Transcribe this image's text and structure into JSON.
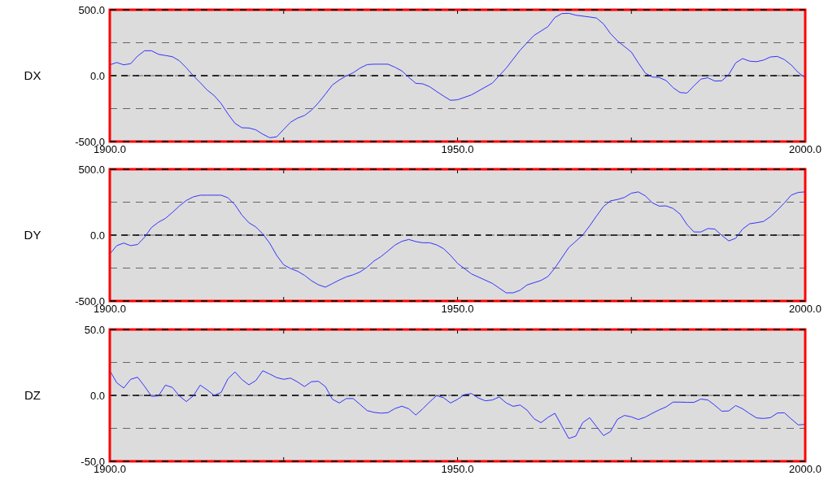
{
  "chart_data": [
    {
      "type": "line",
      "ylabel": "DX",
      "xlim": [
        1900,
        2000
      ],
      "ylim": [
        -500,
        500
      ],
      "xticks": [
        {
          "value": 1900,
          "label": "1900.0"
        },
        {
          "value": 1925,
          "label": null
        },
        {
          "value": 1950,
          "label": "1950.0"
        },
        {
          "value": 1975,
          "label": null
        },
        {
          "value": 2000,
          "label": "2000.0"
        }
      ],
      "yticks": [
        {
          "value": -500,
          "label": "-500.0"
        },
        {
          "value": -250,
          "label": null
        },
        {
          "value": 0,
          "label": "0.0"
        },
        {
          "value": 250,
          "label": null
        },
        {
          "value": 500,
          "label": "500.0"
        }
      ],
      "grid": "y",
      "ref_lines": [
        {
          "axis": "y",
          "value": 0,
          "color": "#000000",
          "line_style": "dashed"
        }
      ],
      "series": [
        {
          "color": "#3333ff",
          "x": [
            1900,
            1901,
            1902,
            1903,
            1904,
            1905,
            1906,
            1907,
            1908,
            1909,
            1910,
            1911,
            1912,
            1913,
            1914,
            1915,
            1916,
            1917,
            1918,
            1919,
            1920,
            1921,
            1922,
            1923,
            1924,
            1925,
            1926,
            1927,
            1928,
            1929,
            1930,
            1931,
            1932,
            1933,
            1934,
            1935,
            1936,
            1937,
            1938,
            1939,
            1940,
            1941,
            1942,
            1943,
            1944,
            1945,
            1946,
            1947,
            1948,
            1949,
            1950,
            1952,
            1955,
            1956,
            1957,
            1959,
            1960,
            1961,
            1963,
            1964,
            1965,
            1966,
            1967,
            1969,
            1970,
            1971,
            1972,
            1973,
            1975,
            1976,
            1977,
            1978,
            1979,
            1980,
            1981,
            1982,
            1983,
            1984,
            1985,
            1986,
            1987,
            1988,
            1989,
            1990,
            1991,
            1992,
            1993,
            1994,
            1995,
            1996,
            1997,
            1998,
            1999,
            2000
          ],
          "values": [
            82,
            100,
            82,
            91,
            149,
            189,
            189,
            162,
            153,
            144,
            113,
            60,
            0,
            -53,
            -109,
            -151,
            -211,
            -291,
            -362,
            -395,
            -397,
            -411,
            -444,
            -471,
            -464,
            -408,
            -353,
            -322,
            -302,
            -262,
            -206,
            -140,
            -71,
            -33,
            -2,
            22,
            58,
            84,
            87,
            87,
            87,
            64,
            36,
            -13,
            -58,
            -62,
            -84,
            -120,
            -155,
            -187,
            -183,
            -146,
            -57,
            0,
            57,
            193,
            250,
            305,
            372,
            441,
            471,
            473,
            459,
            445,
            437,
            392,
            319,
            264,
            179,
            97,
            20,
            -10,
            -14,
            -37,
            -91,
            -128,
            -132,
            -77,
            -26,
            -16,
            -41,
            -39,
            8,
            97,
            130,
            110,
            106,
            118,
            142,
            146,
            122,
            81,
            24,
            -16
          ]
        }
      ]
    },
    {
      "type": "line",
      "ylabel": "DY",
      "xlim": [
        1900,
        2000
      ],
      "ylim": [
        -500,
        500
      ],
      "xticks": [
        {
          "value": 1900,
          "label": "1900.0"
        },
        {
          "value": 1925,
          "label": null
        },
        {
          "value": 1950,
          "label": "1950.0"
        },
        {
          "value": 1975,
          "label": null
        },
        {
          "value": 2000,
          "label": "2000.0"
        }
      ],
      "yticks": [
        {
          "value": -500,
          "label": "-500.0"
        },
        {
          "value": -250,
          "label": null
        },
        {
          "value": 0,
          "label": "0.0"
        },
        {
          "value": 250,
          "label": null
        },
        {
          "value": 500,
          "label": "500.0"
        }
      ],
      "grid": "y",
      "ref_lines": [
        {
          "axis": "y",
          "value": 0,
          "color": "#000000",
          "line_style": "dashed"
        }
      ],
      "series": [
        {
          "color": "#3333ff",
          "x": [
            1900,
            1901,
            1902,
            1903,
            1904,
            1905,
            1906,
            1907,
            1908,
            1909,
            1910,
            1911,
            1912,
            1913,
            1914,
            1915,
            1916,
            1917,
            1918,
            1919,
            1920,
            1921,
            1922,
            1923,
            1924,
            1925,
            1926,
            1927,
            1928,
            1929,
            1930,
            1931,
            1932,
            1933,
            1934,
            1935,
            1936,
            1937,
            1938,
            1939,
            1940,
            1941,
            1942,
            1943,
            1944,
            1945,
            1946,
            1947,
            1948,
            1949,
            1950,
            1952,
            1955,
            1957,
            1958,
            1959,
            1960,
            1962,
            1963,
            1964,
            1966,
            1968,
            1969,
            1970,
            1971,
            1972,
            1973,
            1974,
            1975,
            1976,
            1977,
            1978,
            1979,
            1980,
            1981,
            1982,
            1983,
            1984,
            1985,
            1986,
            1987,
            1988,
            1989,
            1990,
            1991,
            1992,
            1993,
            1994,
            1995,
            1996,
            1997,
            1998,
            1999,
            2000
          ],
          "values": [
            -143,
            -80,
            -60,
            -80,
            -71,
            -16,
            58,
            98,
            127,
            172,
            221,
            263,
            290,
            303,
            303,
            303,
            303,
            283,
            230,
            152,
            94,
            62,
            9,
            -62,
            -154,
            -225,
            -254,
            -274,
            -305,
            -346,
            -377,
            -395,
            -368,
            -341,
            -317,
            -301,
            -279,
            -243,
            -196,
            -163,
            -120,
            -76,
            -47,
            -33,
            -49,
            -58,
            -58,
            -74,
            -103,
            -154,
            -214,
            -294,
            -366,
            -438,
            -438,
            -418,
            -378,
            -344,
            -314,
            -250,
            -94,
            0,
            70,
            146,
            218,
            260,
            270,
            286,
            318,
            328,
            298,
            246,
            220,
            222,
            202,
            160,
            80,
            24,
            24,
            50,
            46,
            -2,
            -44,
            -24,
            46,
            86,
            94,
            104,
            140,
            190,
            244,
            304,
            324,
            328
          ]
        }
      ]
    },
    {
      "type": "line",
      "ylabel": "DZ",
      "xlim": [
        1900,
        2000
      ],
      "ylim": [
        -50,
        50
      ],
      "xticks": [
        {
          "value": 1900,
          "label": "1900.0"
        },
        {
          "value": 1925,
          "label": null
        },
        {
          "value": 1950,
          "label": "1950.0"
        },
        {
          "value": 1975,
          "label": null
        },
        {
          "value": 2000,
          "label": "2000.0"
        }
      ],
      "yticks": [
        {
          "value": -50,
          "label": "-50.0"
        },
        {
          "value": -25,
          "label": null
        },
        {
          "value": 0,
          "label": "0.0"
        },
        {
          "value": 25,
          "label": null
        },
        {
          "value": 50,
          "label": "50.0"
        }
      ],
      "grid": "y",
      "ref_lines": [
        {
          "axis": "y",
          "value": 0,
          "color": "#000000",
          "line_style": "dashed"
        }
      ],
      "series": [
        {
          "color": "#3333ff",
          "x": [
            1900,
            1901,
            1902,
            1903,
            1904,
            1905,
            1906,
            1907,
            1908,
            1909,
            1910,
            1911,
            1912,
            1913,
            1914,
            1915,
            1916,
            1917,
            1918,
            1919,
            1920,
            1921,
            1922,
            1923,
            1924,
            1925,
            1926,
            1927,
            1928,
            1929,
            1930,
            1931,
            1932,
            1933,
            1934,
            1935,
            1936,
            1937,
            1938,
            1939,
            1940,
            1941,
            1942,
            1943,
            1944,
            1945,
            1946,
            1947,
            1948,
            1949,
            1950,
            1951,
            1952,
            1953,
            1954,
            1955,
            1956,
            1957,
            1958,
            1959,
            1960,
            1961,
            1962,
            1963,
            1964,
            1965,
            1966,
            1967,
            1968,
            1969,
            1970,
            1971,
            1972,
            1973,
            1974,
            1975,
            1976,
            1977,
            1978,
            1979,
            1980,
            1981,
            1982,
            1983,
            1984,
            1985,
            1986,
            1987,
            1988,
            1989,
            1990,
            1991,
            1992,
            1993,
            1994,
            1995,
            1996,
            1997,
            1998,
            1999,
            2000
          ],
          "values": [
            18.7,
            9.6,
            5.6,
            12.2,
            13.8,
            6.9,
            -0.7,
            -0.4,
            7.8,
            6.0,
            -0.4,
            -4.7,
            -0.4,
            7.8,
            4.2,
            0,
            2.2,
            12.7,
            17.8,
            12.0,
            8.0,
            11.3,
            18.7,
            16.2,
            13.5,
            12.2,
            13.1,
            10.2,
            6.7,
            10.4,
            10.7,
            6.7,
            -2.9,
            -5.8,
            -2.4,
            -2.4,
            -6.9,
            -11.5,
            -12.9,
            -13.5,
            -13.1,
            -10.0,
            -8.2,
            -10.2,
            -14.9,
            -10.2,
            -4.9,
            -0.2,
            -1.8,
            -5.8,
            -3.0,
            0.6,
            1.4,
            -2.0,
            -4.1,
            -3.5,
            -1.2,
            -5.7,
            -8.3,
            -7.3,
            -11.2,
            -17.7,
            -20.7,
            -16.7,
            -13.6,
            -23.2,
            -32.7,
            -30.9,
            -20.7,
            -16.9,
            -23.8,
            -30.5,
            -27.4,
            -18.1,
            -15.2,
            -16.3,
            -18.3,
            -16.5,
            -13.6,
            -11.0,
            -8.7,
            -5.1,
            -5.1,
            -5.3,
            -5.3,
            -2.8,
            -3.5,
            -7.5,
            -12.0,
            -11.8,
            -7.7,
            -10.2,
            -13.8,
            -17.1,
            -17.5,
            -16.9,
            -13.4,
            -13.2,
            -17.9,
            -22.4,
            -22.0
          ]
        }
      ]
    }
  ]
}
